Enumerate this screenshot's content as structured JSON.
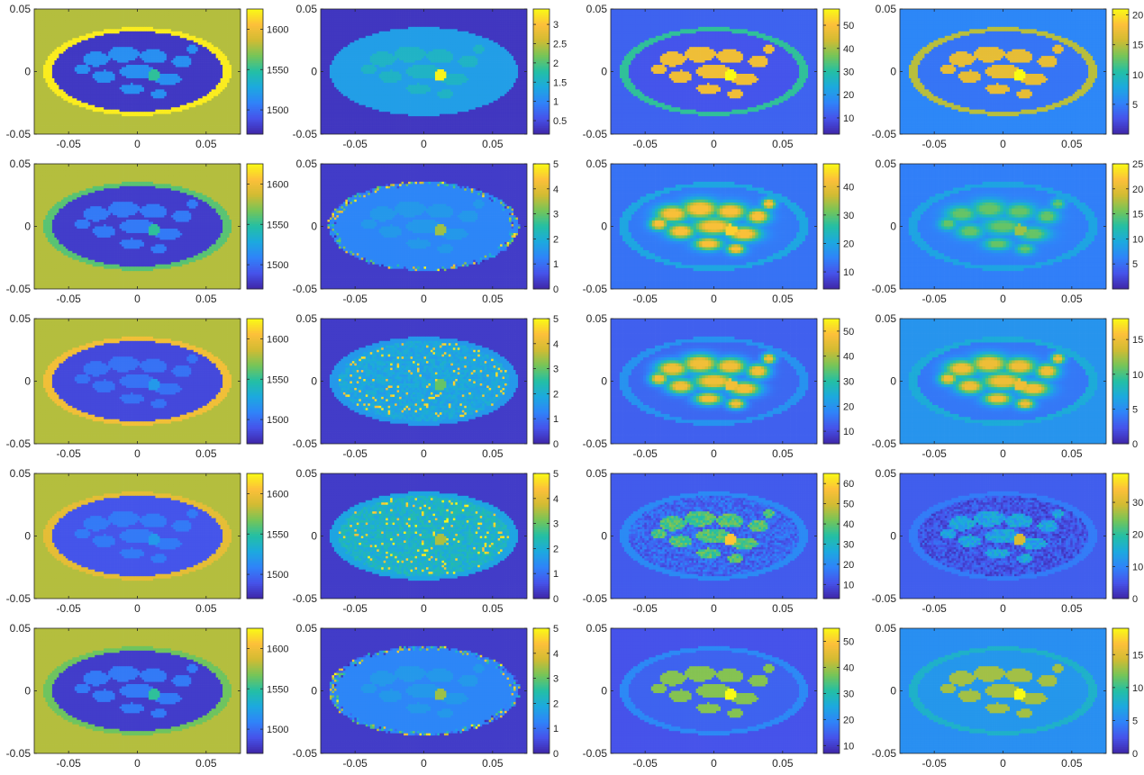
{
  "chart_data": {
    "type": "heatmap",
    "grid_layout": {
      "rows": 5,
      "cols": 4
    },
    "colormap": "parula",
    "colormap_stops": [
      "#3e26a8",
      "#4653ea",
      "#2f83f9",
      "#1ca9df",
      "#24bfa4",
      "#76c558",
      "#d2bb32",
      "#fdc03a",
      "#f9fb15"
    ],
    "axes": {
      "xlim": [
        -0.075,
        0.075
      ],
      "ylim": [
        -0.05,
        0.05
      ],
      "xticks": [
        -0.05,
        0,
        0.05
      ],
      "yticks": [
        -0.05,
        0,
        0.05
      ],
      "xtick_labels": [
        "-0.05",
        "0",
        "0.05"
      ],
      "ytick_labels": [
        "-0.05",
        "0",
        "0.05"
      ]
    },
    "panels": [
      {
        "row": 1,
        "col": 1,
        "kind": "sound-speed",
        "clim": [
          1470,
          1625
        ],
        "colorbar_ticks": [
          "1500",
          "1550",
          "1600"
        ],
        "colorbar_values": [
          1500,
          1550,
          1600
        ],
        "background": 1580,
        "ring": 1620,
        "interior": 1478,
        "texture": 1515,
        "inclusion": 1550,
        "style": "ground-truth"
      },
      {
        "row": 1,
        "col": 2,
        "kind": "attenuation",
        "clim": [
          0.15,
          3.4
        ],
        "colorbar_ticks": [
          "0.5",
          "1",
          "1.5",
          "2",
          "2.5",
          "3"
        ],
        "colorbar_values": [
          0.5,
          1,
          1.5,
          2,
          2.5,
          3
        ],
        "background": 0.3,
        "ring": 1.25,
        "interior": 1.25,
        "texture": 1.55,
        "inclusion": 3.35,
        "style": "ground-truth"
      },
      {
        "row": 1,
        "col": 3,
        "kind": "parameter-3",
        "clim": [
          3,
          57
        ],
        "colorbar_ticks": [
          "10",
          "20",
          "30",
          "40",
          "50"
        ],
        "colorbar_values": [
          10,
          20,
          30,
          40,
          50
        ],
        "background": 12,
        "ring": 31,
        "interior": 10,
        "texture": 48,
        "inclusion": 57,
        "style": "ground-truth"
      },
      {
        "row": 1,
        "col": 4,
        "kind": "parameter-4",
        "clim": [
          0,
          21
        ],
        "colorbar_ticks": [
          "5",
          "10",
          "15",
          "20"
        ],
        "colorbar_values": [
          5,
          10,
          15,
          20
        ],
        "background": 5.5,
        "ring": 15,
        "interior": 4.5,
        "texture": 17,
        "inclusion": 21,
        "style": "ground-truth"
      },
      {
        "row": 2,
        "col": 1,
        "kind": "sound-speed",
        "clim": [
          1470,
          1625
        ],
        "colorbar_ticks": [
          "1500",
          "1550",
          "1600"
        ],
        "colorbar_values": [
          1500,
          1550,
          1600
        ],
        "background": 1580,
        "ring": 1560,
        "interior": 1480,
        "texture": 1505,
        "inclusion": 1550,
        "style": "blocky"
      },
      {
        "row": 2,
        "col": 2,
        "kind": "attenuation",
        "clim": [
          0,
          5
        ],
        "colorbar_ticks": [
          "0",
          "1",
          "2",
          "3",
          "4",
          "5"
        ],
        "colorbar_values": [
          0,
          1,
          2,
          3,
          4,
          5
        ],
        "background": 0.3,
        "ring": 1.3,
        "interior": 1.3,
        "texture": 1.6,
        "inclusion": 3.4,
        "style": "blocky-speckle"
      },
      {
        "row": 2,
        "col": 3,
        "kind": "parameter-3",
        "clim": [
          4,
          48
        ],
        "colorbar_ticks": [
          "10",
          "20",
          "30",
          "40"
        ],
        "colorbar_values": [
          10,
          20,
          30,
          40
        ],
        "background": 13,
        "ring": 20,
        "interior": 14,
        "texture": 42,
        "inclusion": 44,
        "style": "smooth"
      },
      {
        "row": 2,
        "col": 4,
        "kind": "parameter-4",
        "clim": [
          0,
          25
        ],
        "colorbar_ticks": [
          "5",
          "10",
          "15",
          "20",
          "25"
        ],
        "colorbar_values": [
          5,
          10,
          15,
          20,
          25
        ],
        "background": 6,
        "ring": 9,
        "interior": 6,
        "texture": 15,
        "inclusion": 17,
        "style": "smooth"
      },
      {
        "row": 3,
        "col": 1,
        "kind": "sound-speed",
        "clim": [
          1470,
          1625
        ],
        "colorbar_ticks": [
          "1500",
          "1550",
          "1600"
        ],
        "colorbar_values": [
          1500,
          1550,
          1600
        ],
        "background": 1580,
        "ring": 1600,
        "interior": 1485,
        "texture": 1502,
        "inclusion": 1520,
        "style": "blurred"
      },
      {
        "row": 3,
        "col": 2,
        "kind": "attenuation",
        "clim": [
          0,
          5
        ],
        "colorbar_ticks": [
          "0",
          "1",
          "2",
          "3",
          "4",
          "5"
        ],
        "colorbar_values": [
          0,
          1,
          2,
          3,
          4,
          5
        ],
        "background": 0.3,
        "ring": 1.6,
        "interior": 1.6,
        "texture": 1.9,
        "inclusion": 3.0,
        "style": "noisy"
      },
      {
        "row": 3,
        "col": 3,
        "kind": "parameter-3",
        "clim": [
          5,
          55
        ],
        "colorbar_ticks": [
          "10",
          "20",
          "30",
          "40",
          "50"
        ],
        "colorbar_values": [
          10,
          20,
          30,
          40,
          50
        ],
        "background": 13,
        "ring": 20,
        "interior": 14,
        "texture": 47,
        "inclusion": 47,
        "style": "smooth"
      },
      {
        "row": 3,
        "col": 4,
        "kind": "parameter-4",
        "clim": [
          0,
          18
        ],
        "colorbar_ticks": [
          "0",
          "5",
          "10",
          "15"
        ],
        "colorbar_values": [
          0,
          5,
          10,
          15
        ],
        "background": 5.5,
        "ring": 7,
        "interior": 4,
        "texture": 15,
        "inclusion": 15,
        "style": "smooth"
      },
      {
        "row": 4,
        "col": 1,
        "kind": "sound-speed",
        "clim": [
          1470,
          1625
        ],
        "colorbar_ticks": [
          "1500",
          "1550",
          "1600"
        ],
        "colorbar_values": [
          1500,
          1550,
          1600
        ],
        "background": 1580,
        "ring": 1595,
        "interior": 1490,
        "texture": 1505,
        "inclusion": 1520,
        "style": "blurred"
      },
      {
        "row": 4,
        "col": 2,
        "kind": "attenuation",
        "clim": [
          0,
          5
        ],
        "colorbar_ticks": [
          "0",
          "1",
          "2",
          "3",
          "4",
          "5"
        ],
        "colorbar_values": [
          0,
          1,
          2,
          3,
          4,
          5
        ],
        "background": 0.3,
        "ring": 1.8,
        "interior": 1.8,
        "texture": 2.2,
        "inclusion": 3.5,
        "style": "noisy"
      },
      {
        "row": 4,
        "col": 3,
        "kind": "parameter-3",
        "clim": [
          3,
          65
        ],
        "colorbar_ticks": [
          "10",
          "20",
          "30",
          "40",
          "50",
          "60"
        ],
        "colorbar_values": [
          10,
          20,
          30,
          40,
          50,
          60
        ],
        "background": 12,
        "ring": 20,
        "interior": 14,
        "texture": 38,
        "inclusion": 58,
        "style": "patchy"
      },
      {
        "row": 4,
        "col": 4,
        "kind": "parameter-4",
        "clim": [
          0,
          39
        ],
        "colorbar_ticks": [
          "0",
          "10",
          "20",
          "30"
        ],
        "colorbar_values": [
          0,
          10,
          20,
          30
        ],
        "background": 6,
        "ring": 9,
        "interior": 5,
        "texture": 14,
        "inclusion": 30,
        "style": "patchy"
      },
      {
        "row": 5,
        "col": 1,
        "kind": "sound-speed",
        "clim": [
          1470,
          1625
        ],
        "colorbar_ticks": [
          "1500",
          "1550",
          "1600"
        ],
        "colorbar_values": [
          1500,
          1550,
          1600
        ],
        "background": 1580,
        "ring": 1565,
        "interior": 1480,
        "texture": 1505,
        "inclusion": 1550,
        "style": "blocky"
      },
      {
        "row": 5,
        "col": 2,
        "kind": "attenuation",
        "clim": [
          0,
          5
        ],
        "colorbar_ticks": [
          "0",
          "1",
          "2",
          "3",
          "4",
          "5"
        ],
        "colorbar_values": [
          0,
          1,
          2,
          3,
          4,
          5
        ],
        "background": 0.3,
        "ring": 1.3,
        "interior": 1.3,
        "texture": 1.6,
        "inclusion": 3.4,
        "style": "blocky-speckle"
      },
      {
        "row": 5,
        "col": 3,
        "kind": "parameter-3",
        "clim": [
          7,
          55
        ],
        "colorbar_ticks": [
          "10",
          "20",
          "30",
          "40",
          "50"
        ],
        "colorbar_values": [
          10,
          20,
          30,
          40,
          50
        ],
        "background": 13,
        "ring": 20,
        "interior": 15,
        "texture": 38,
        "inclusion": 55,
        "style": "segmented"
      },
      {
        "row": 5,
        "col": 4,
        "kind": "parameter-4",
        "clim": [
          0,
          19
        ],
        "colorbar_ticks": [
          "0",
          "5",
          "10",
          "15"
        ],
        "colorbar_values": [
          0,
          5,
          10,
          15
        ],
        "background": 5.5,
        "ring": 8,
        "interior": 6,
        "texture": 13,
        "inclusion": 19,
        "style": "segmented"
      }
    ]
  }
}
